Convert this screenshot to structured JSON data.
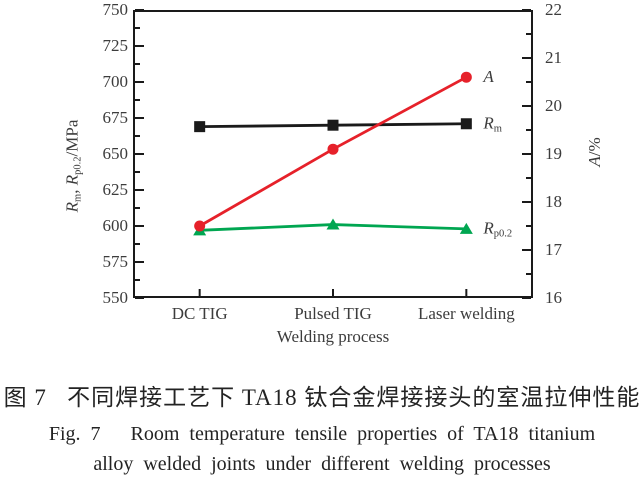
{
  "colors": {
    "axis": "#1a1a1a",
    "tick_text": "#3c3c3c",
    "rm_black": "#1a1a1a",
    "rp_green": "#00a651",
    "a_red": "#e6212a"
  },
  "chart_data": {
    "type": "line",
    "categories": [
      "DC TIG",
      "Pulsed TIG",
      "Laser welding"
    ],
    "xlabel": "Welding process",
    "left_axis": {
      "label_parts": [
        {
          "text": "R",
          "italic": true
        },
        {
          "text": "m",
          "sub": true
        },
        {
          "text": ", "
        },
        {
          "text": "R",
          "italic": true
        },
        {
          "text": "p0.2",
          "sub": true
        },
        {
          "text": "/MPa"
        }
      ],
      "min": 550,
      "max": 750,
      "ticks": [
        "750",
        "725",
        "700",
        "675",
        "650",
        "625",
        "600",
        "575",
        "550"
      ],
      "tick_values": [
        750,
        725,
        700,
        675,
        650,
        625,
        600,
        575,
        550
      ],
      "minor_step": 12.5
    },
    "right_axis": {
      "label_parts": [
        {
          "text": "A",
          "italic": true
        },
        {
          "text": "/%"
        }
      ],
      "min": 16,
      "max": 22,
      "ticks": [
        "22",
        "21",
        "20",
        "19",
        "18",
        "17",
        "16"
      ],
      "tick_values": [
        22,
        21,
        20,
        19,
        18,
        17,
        16
      ],
      "minor_step": 0.5
    },
    "series": [
      {
        "name": "Rm",
        "label_parts": [
          {
            "text": "R",
            "italic": true
          },
          {
            "text": "m",
            "sub": true
          }
        ],
        "axis": "left",
        "color": "#1a1a1a",
        "marker": "square",
        "values": [
          669,
          670,
          671
        ]
      },
      {
        "name": "Rp0.2",
        "label_parts": [
          {
            "text": "R",
            "italic": true
          },
          {
            "text": "p0.2",
            "sub": true
          }
        ],
        "axis": "left",
        "color": "#00a651",
        "marker": "triangle",
        "values": [
          597,
          601,
          598
        ]
      },
      {
        "name": "A",
        "label_parts": [
          {
            "text": "A",
            "italic": true
          }
        ],
        "axis": "right",
        "color": "#e6212a",
        "marker": "circle",
        "values": [
          17.5,
          19.1,
          20.6
        ]
      }
    ]
  },
  "caption": {
    "zh": "图 7   不同焊接工艺下 TA18 钛合金焊接接头的室温拉伸性能",
    "en_line1": "Fig. 7   Room temperature tensile properties of TA18 titanium",
    "en_line2": "alloy welded joints under different welding processes"
  }
}
